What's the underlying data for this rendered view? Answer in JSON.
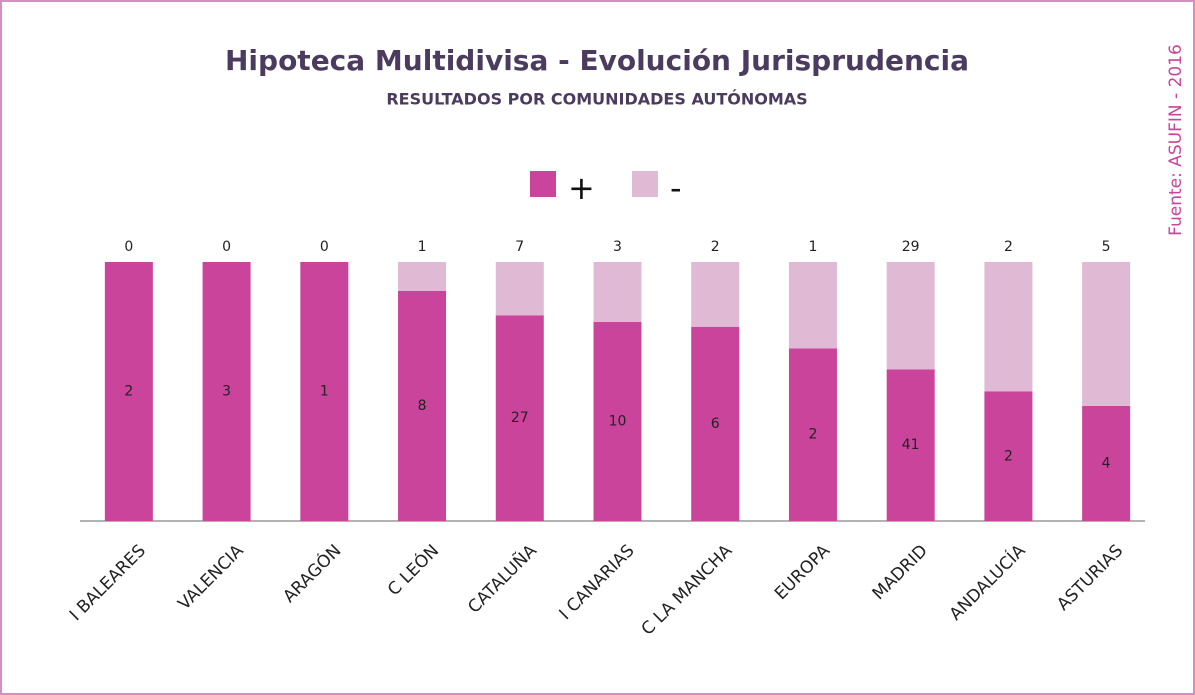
{
  "chart_data": {
    "type": "bar",
    "stacked": "percent",
    "title": "Hipoteca Multidivisa - Evolución Jurisprudencia",
    "subtitle": "RESULTADOS POR COMUNIDADES AUTÓNOMAS",
    "source": "Fuente: ASUFIN - 2016",
    "categories": [
      "I BALEARES",
      "VALENCIA",
      "ARAGÓN",
      "C LEÓN",
      "CATALUÑA",
      "I CANARIAS",
      "C LA MANCHA",
      "EUROPA",
      "MADRID",
      "ANDALUCÍA",
      "ASTURIAS"
    ],
    "series": [
      {
        "name": "+",
        "color": "#c9449a",
        "values": [
          2,
          3,
          1,
          8,
          27,
          10,
          6,
          2,
          41,
          2,
          4
        ]
      },
      {
        "name": "-",
        "color": "#e0b9d4",
        "values": [
          0,
          0,
          0,
          1,
          7,
          3,
          2,
          1,
          29,
          2,
          5
        ]
      }
    ],
    "legend": "top"
  }
}
